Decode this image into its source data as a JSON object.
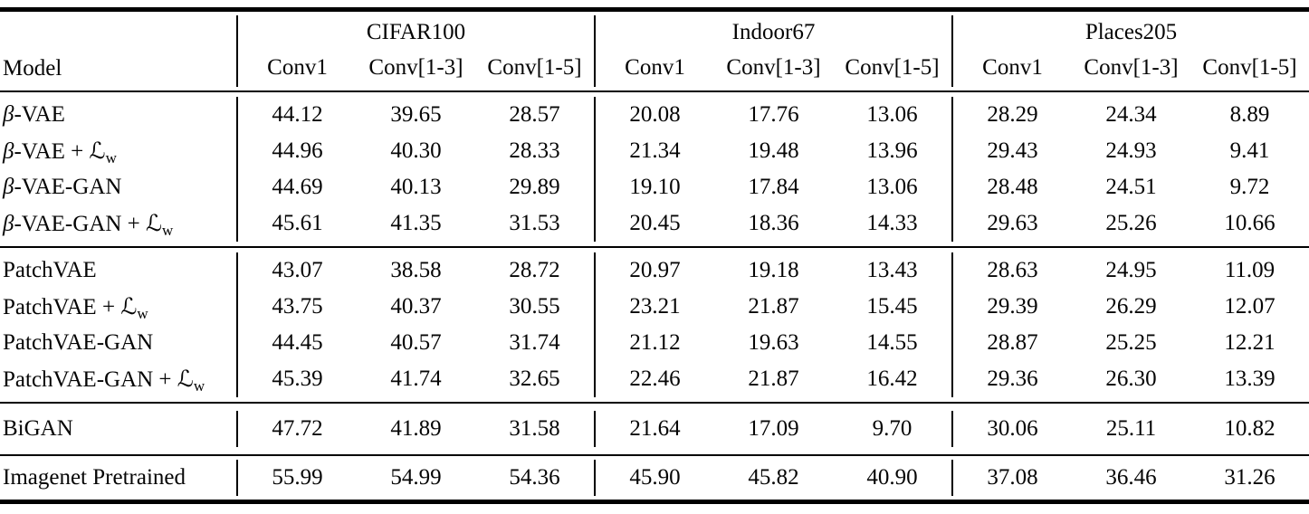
{
  "table": {
    "model_header": "Model",
    "groups": [
      {
        "name": "CIFAR100",
        "columns": [
          "Conv1",
          "Conv[1-3]",
          "Conv[1-5]"
        ]
      },
      {
        "name": "Indoor67",
        "columns": [
          "Conv1",
          "Conv[1-3]",
          "Conv[1-5]"
        ]
      },
      {
        "name": "Places205",
        "columns": [
          "Conv1",
          "Conv[1-3]",
          "Conv[1-5]"
        ]
      }
    ],
    "sections": [
      {
        "rows": [
          {
            "label": "β-VAE",
            "values": [
              "44.12",
              "39.65",
              "28.57",
              "20.08",
              "17.76",
              "13.06",
              "28.29",
              "24.34",
              "8.89"
            ]
          },
          {
            "label": "β-VAE + ℒ_w",
            "values": [
              "44.96",
              "40.30",
              "28.33",
              "21.34",
              "19.48",
              "13.96",
              "29.43",
              "24.93",
              "9.41"
            ]
          },
          {
            "label": "β-VAE-GAN",
            "values": [
              "44.69",
              "40.13",
              "29.89",
              "19.10",
              "17.84",
              "13.06",
              "28.48",
              "24.51",
              "9.72"
            ]
          },
          {
            "label": "β-VAE-GAN + ℒ_w",
            "values": [
              "45.61",
              "41.35",
              "31.53",
              "20.45",
              "18.36",
              "14.33",
              "29.63",
              "25.26",
              "10.66"
            ]
          }
        ]
      },
      {
        "rows": [
          {
            "label": "PatchVAE",
            "values": [
              "43.07",
              "38.58",
              "28.72",
              "20.97",
              "19.18",
              "13.43",
              "28.63",
              "24.95",
              "11.09"
            ]
          },
          {
            "label": "PatchVAE + ℒ_w",
            "values": [
              "43.75",
              "40.37",
              "30.55",
              "23.21",
              "21.87",
              "15.45",
              "29.39",
              "26.29",
              "12.07"
            ]
          },
          {
            "label": "PatchVAE-GAN",
            "values": [
              "44.45",
              "40.57",
              "31.74",
              "21.12",
              "19.63",
              "14.55",
              "28.87",
              "25.25",
              "12.21"
            ]
          },
          {
            "label": "PatchVAE-GAN + ℒ_w",
            "values": [
              "45.39",
              "41.74",
              "32.65",
              "22.46",
              "21.87",
              "16.42",
              "29.36",
              "26.30",
              "13.39"
            ]
          }
        ]
      },
      {
        "rows": [
          {
            "label": "BiGAN",
            "values": [
              "47.72",
              "41.89",
              "31.58",
              "21.64",
              "17.09",
              "9.70",
              "30.06",
              "25.11",
              "10.82"
            ]
          }
        ]
      },
      {
        "rows": [
          {
            "label": "Imagenet Pretrained",
            "values": [
              "55.99",
              "54.99",
              "54.36",
              "45.90",
              "45.82",
              "40.90",
              "37.08",
              "36.46",
              "31.26"
            ]
          }
        ]
      }
    ]
  }
}
